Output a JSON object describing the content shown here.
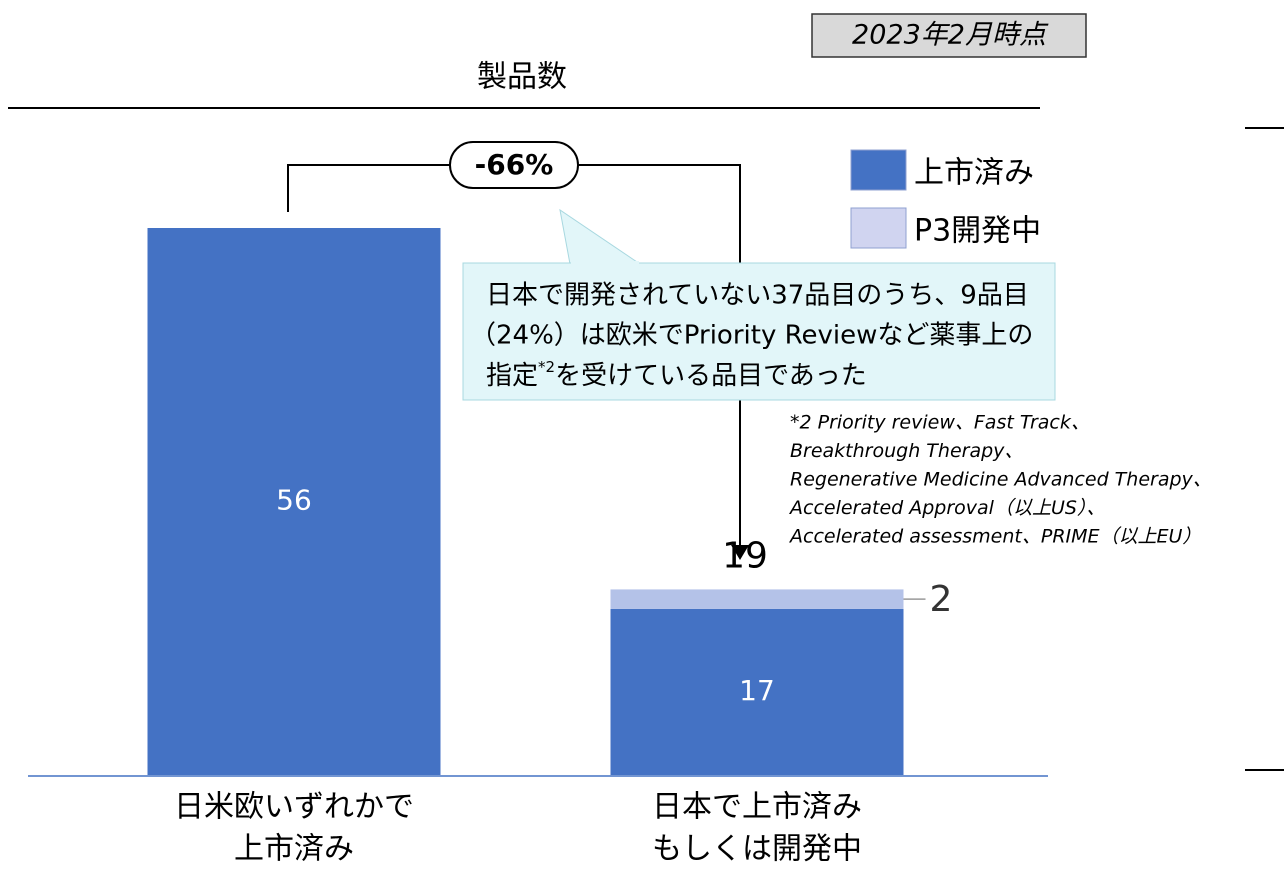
{
  "chart_data": {
    "type": "stacked_bar",
    "title": "製品数",
    "date_note": "2023年2月時点",
    "categories": [
      [
        "日米欧いずれかで",
        "上市済み"
      ],
      [
        "日本で上市済み",
        "もしくは開発中"
      ]
    ],
    "series": [
      {
        "name": "上市済み",
        "color": "#4472c4",
        "legend_color": "#4472c4",
        "values": [
          56,
          17
        ]
      },
      {
        "name": "P3開発中",
        "color": "#b4c2e8",
        "legend_color": "#d0d4f0",
        "values": [
          null,
          2
        ]
      }
    ],
    "stack_totals": [
      null,
      19
    ],
    "change_label": "-66%",
    "callout": {
      "lines": [
        "日本で開発されていない37品目のうち、9品目",
        "（24%）は欧米でPriority Reviewなど薬事上の"
      ],
      "last_line": {
        "before": "指定",
        "sup": "*2",
        "after": "を受けている品目であった"
      }
    },
    "footnote": [
      "*2 Priority review、Fast Track、",
      "Breakthrough Therapy、",
      "Regenerative Medicine Advanced Therapy、",
      "Accelerated Approval（以上US）、",
      "Accelerated assessment、PRIME（以上EU）"
    ]
  }
}
